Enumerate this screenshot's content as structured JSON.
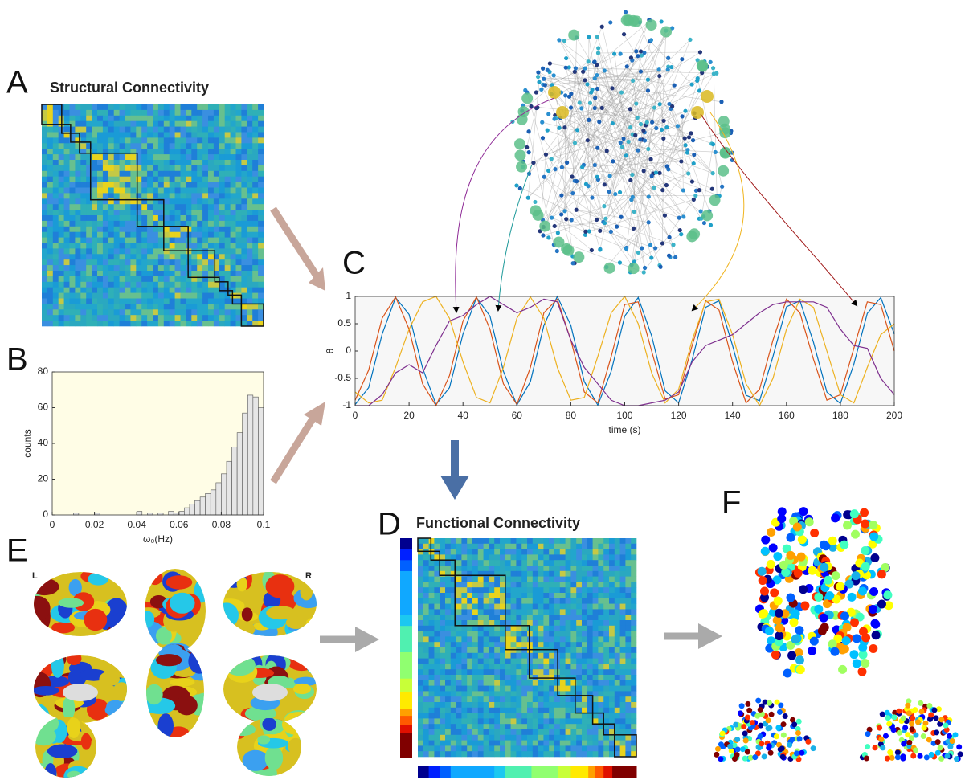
{
  "panel_labels": [
    "A",
    "B",
    "C",
    "D",
    "E",
    "F"
  ],
  "structural_title": "Structural Connectivity",
  "functional_title": "Functional Connectivity",
  "hemisphere_labels": [
    "L",
    "R"
  ],
  "chart_data": [
    {
      "type": "histogram",
      "xlabel": "ω₀(Hz)",
      "ylabel": "counts",
      "bins": [
        0,
        0.0025,
        0.005,
        0.0075,
        0.01,
        0.0125,
        0.015,
        0.0175,
        0.02,
        0.0225,
        0.025,
        0.0275,
        0.03,
        0.0325,
        0.035,
        0.0375,
        0.04,
        0.0425,
        0.045,
        0.0475,
        0.05,
        0.0525,
        0.055,
        0.0575,
        0.06,
        0.0625,
        0.065,
        0.0675,
        0.07,
        0.0725,
        0.075,
        0.0775,
        0.08,
        0.0825,
        0.085,
        0.0875,
        0.09,
        0.0925,
        0.095,
        0.0975,
        0.1
      ],
      "values": [
        0,
        0,
        0,
        0,
        1,
        0,
        0,
        0,
        1,
        0,
        0,
        0,
        0,
        0,
        0,
        0,
        2,
        0,
        1,
        0,
        1,
        0,
        2,
        1,
        2,
        4,
        6,
        8,
        10,
        12,
        14,
        18,
        23,
        30,
        38,
        46,
        57,
        67,
        66,
        60
      ],
      "color": "#e6e6e6",
      "background": "#fffde6",
      "xlim": [
        0,
        0.1
      ],
      "xticks": [
        0,
        0.02,
        0.04,
        0.06,
        0.08,
        0.1
      ],
      "ylim": [
        0,
        80
      ],
      "yticks": [
        0,
        20,
        40,
        60,
        80
      ]
    },
    {
      "type": "line",
      "xlabel": "time (s)",
      "ylabel": "θ",
      "background": "#f7f7f7",
      "x": [
        0,
        5,
        10,
        15,
        20,
        25,
        30,
        35,
        40,
        45,
        50,
        55,
        60,
        65,
        70,
        75,
        80,
        85,
        90,
        95,
        100,
        105,
        110,
        115,
        120,
        125,
        130,
        135,
        140,
        145,
        150,
        155,
        160,
        165,
        170,
        175,
        180,
        185,
        190,
        195,
        200
      ],
      "series": [
        {
          "color": "#0072bd",
          "values": [
            -0.98,
            -0.67,
            0.31,
            0.98,
            0.67,
            -0.31,
            -0.98,
            -0.67,
            0.31,
            0.98,
            0.64,
            -0.37,
            -0.99,
            -0.56,
            0.47,
            1.0,
            0.47,
            -0.56,
            -0.99,
            -0.37,
            0.64,
            0.98,
            0.28,
            -0.73,
            -0.95,
            -0.16,
            0.8,
            0.92,
            0.1,
            -0.81,
            -0.91,
            -0.1,
            0.81,
            0.92,
            0.16,
            -0.75,
            -0.96,
            -0.24,
            0.69,
            0.98,
            0.31
          ]
        },
        {
          "color": "#d95319",
          "values": [
            -0.9,
            -0.35,
            0.6,
            0.99,
            0.4,
            -0.6,
            -1.0,
            -0.45,
            0.55,
            0.99,
            0.4,
            -0.6,
            -0.98,
            -0.3,
            0.7,
            0.95,
            0.2,
            -0.75,
            -0.95,
            -0.1,
            0.85,
            0.9,
            0.0,
            -0.88,
            -0.8,
            0.1,
            0.92,
            0.75,
            -0.2,
            -0.95,
            -0.7,
            0.2,
            0.95,
            0.7,
            -0.15,
            -0.9,
            -0.8,
            0.05,
            0.9,
            0.85,
            0.0
          ]
        },
        {
          "color": "#edb120",
          "values": [
            -0.75,
            -0.95,
            -0.9,
            -0.3,
            0.4,
            0.9,
            1.0,
            0.6,
            -0.2,
            -0.85,
            -0.95,
            -0.3,
            0.6,
            0.99,
            0.6,
            -0.3,
            -0.9,
            -0.85,
            -0.1,
            0.7,
            1.0,
            0.5,
            -0.4,
            -0.95,
            -0.7,
            0.2,
            0.9,
            0.95,
            0.3,
            -0.6,
            -1.0,
            -0.5,
            0.4,
            0.95,
            0.8,
            0.0,
            -0.8,
            -0.95,
            -0.3,
            0.3,
            0.5
          ]
        },
        {
          "color": "#7e2f8e",
          "values": [
            -1,
            -1,
            -0.8,
            -0.4,
            -0.25,
            -0.4,
            0.1,
            0.55,
            0.65,
            0.85,
            1.0,
            0.85,
            0.7,
            0.8,
            0.95,
            0.9,
            0.2,
            -0.3,
            -0.6,
            -0.9,
            -1.0,
            -1.0,
            -0.95,
            -0.9,
            -0.75,
            -0.2,
            0.1,
            0.2,
            0.3,
            0.5,
            0.7,
            0.85,
            0.9,
            0.9,
            0.9,
            0.8,
            0.4,
            0.1,
            0.05,
            -0.5,
            -0.8
          ]
        }
      ],
      "xlim": [
        0,
        200
      ],
      "xticks": [
        0,
        20,
        40,
        60,
        80,
        100,
        120,
        140,
        160,
        180,
        200
      ],
      "ylim": [
        -1,
        1
      ],
      "yticks": [
        -1,
        -0.5,
        0,
        0.5,
        1
      ]
    }
  ]
}
